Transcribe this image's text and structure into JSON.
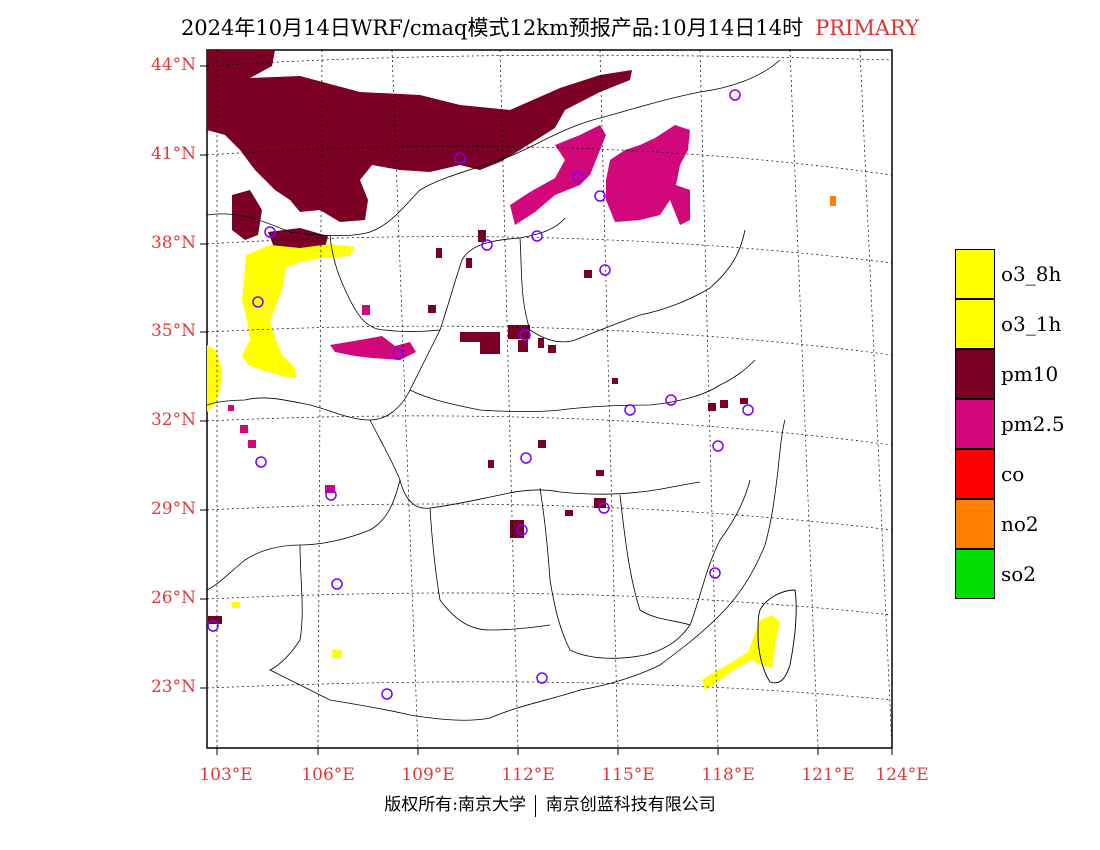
{
  "title": {
    "text": "2024年10月14日WRF/cmaq模式12km预报产品:10月14日14时",
    "tag": "PRIMARY",
    "tag_color": "#e03030"
  },
  "axes": {
    "latitude_labels": [
      "44°N",
      "41°N",
      "38°N",
      "35°N",
      "32°N",
      "29°N",
      "26°N",
      "23°N"
    ],
    "longitude_labels": [
      "103°E",
      "106°E",
      "109°E",
      "112°E",
      "115°E",
      "118°E",
      "121°E",
      "124°E"
    ],
    "label_color": "#e03a3a"
  },
  "legend": {
    "items": [
      {
        "label": "o3_8h",
        "color": "#ffff00"
      },
      {
        "label": "o3_1h",
        "color": "#ffff00"
      },
      {
        "label": "pm10",
        "color": "#7a0026"
      },
      {
        "label": "pm2.5",
        "color": "#d0087a"
      },
      {
        "label": "co",
        "color": "#ff0000"
      },
      {
        "label": "no2",
        "color": "#ff8000"
      },
      {
        "label": "so2",
        "color": "#00dd00"
      }
    ]
  },
  "copyright": {
    "left": "版权所有:南京大学",
    "right": "南京创蓝科技有限公司"
  },
  "map_layers": {
    "pm10_color": "#7a0026",
    "pm25_color": "#d0087a",
    "o3_color": "#ffff00",
    "no2_color": "#ff8000",
    "station_marker_color": "#7a00ff"
  }
}
